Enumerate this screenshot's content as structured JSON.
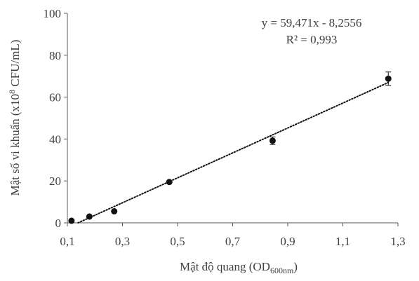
{
  "chart_data": {
    "type": "scatter",
    "title": "",
    "xlabel": {
      "main": "Mật độ quang (OD",
      "sub": "600nm",
      "end": ")"
    },
    "ylabel": {
      "main": "Mật số vi khuẩn (x10",
      "sup": "8",
      "end": " CFU/mL)"
    },
    "xlim": [
      0.1,
      1.3
    ],
    "ylim": [
      0,
      100
    ],
    "xticks": [
      0.1,
      0.3,
      0.5,
      0.7,
      0.9,
      1.1,
      1.3
    ],
    "xtick_labels": [
      "0,1",
      "0,3",
      "0,5",
      "0,7",
      "0,9",
      "1,1",
      "1,3"
    ],
    "yticks": [
      0,
      20,
      40,
      60,
      80,
      100
    ],
    "ytick_labels": [
      "0",
      "20",
      "40",
      "60",
      "80",
      "100"
    ],
    "grid": false,
    "legend": "none",
    "marker_color": "#111111",
    "points": [
      {
        "x": 0.115,
        "y": 1.0,
        "err": 0
      },
      {
        "x": 0.18,
        "y": 3.0,
        "err": 0
      },
      {
        "x": 0.27,
        "y": 5.5,
        "err": 0
      },
      {
        "x": 0.47,
        "y": 19.5,
        "err": 0
      },
      {
        "x": 0.845,
        "y": 39.2,
        "err": 1.8
      },
      {
        "x": 1.265,
        "y": 68.8,
        "err": 3.2
      }
    ],
    "trendline": {
      "style": "dotted",
      "color": "#111111",
      "slope": 59.471,
      "intercept": -8.2556,
      "x_start": 0.139,
      "x_end": 1.265
    },
    "equation_text": "y = 59,471x - 8,2556",
    "r2_text": "R² = 0,993"
  }
}
